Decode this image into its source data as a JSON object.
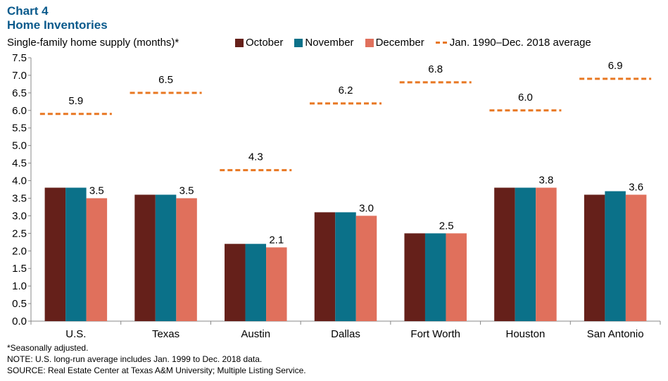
{
  "header": {
    "chart_label": "Chart 4",
    "title": "Home Inventories",
    "subtitle": "Single-family home supply (months)*"
  },
  "legend": {
    "items": [
      {
        "label": "October",
        "color": "#65201a"
      },
      {
        "label": "November",
        "color": "#0b7189"
      },
      {
        "label": "December",
        "color": "#e0705c"
      }
    ],
    "average_label": "Jan. 1990–Dec. 2018 average",
    "average_color": "#e87722"
  },
  "chart_data": {
    "type": "bar",
    "title": "Home Inventories",
    "subtitle": "Single-family home supply (months)*",
    "categories": [
      "U.S.",
      "Texas",
      "Austin",
      "Dallas",
      "Fort Worth",
      "Houston",
      "San Antonio"
    ],
    "series": [
      {
        "name": "October",
        "color": "#65201a",
        "values": [
          3.8,
          3.6,
          2.2,
          3.1,
          2.5,
          3.8,
          3.6
        ]
      },
      {
        "name": "November",
        "color": "#0b7189",
        "values": [
          3.8,
          3.6,
          2.2,
          3.1,
          2.5,
          3.8,
          3.7
        ]
      },
      {
        "name": "December",
        "color": "#e0705c",
        "values": [
          3.5,
          3.5,
          2.1,
          3.0,
          2.5,
          3.8,
          3.6
        ]
      }
    ],
    "average": {
      "name": "Jan. 1990–Dec. 2018 average",
      "color": "#e87722",
      "values": [
        5.9,
        6.5,
        4.3,
        6.2,
        6.8,
        6.0,
        6.9
      ],
      "labels": [
        "5.9",
        "6.5",
        "4.3",
        "6.2",
        "6.8",
        "6.0",
        "6.9"
      ]
    },
    "data_labels": [
      "3.5",
      "3.5",
      "2.1",
      "3.0",
      "2.5",
      "3.8",
      "3.6"
    ],
    "ylim": [
      0,
      7.5
    ],
    "yticks": [
      "0.0",
      "0.5",
      "1.0",
      "1.5",
      "2.0",
      "2.5",
      "3.0",
      "3.5",
      "4.0",
      "4.5",
      "5.0",
      "5.5",
      "6.0",
      "6.5",
      "7.0",
      "7.5"
    ],
    "grid": false,
    "legend_position": "top"
  },
  "footnotes": {
    "seasonal": "*Seasonally adjusted.",
    "note": "NOTE: U.S. long-run  average  includes Jan. 1999 to Dec. 2018 data.",
    "source": "SOURCE: Real Estate Center at Texas A&M University; Multiple Listing Service."
  }
}
